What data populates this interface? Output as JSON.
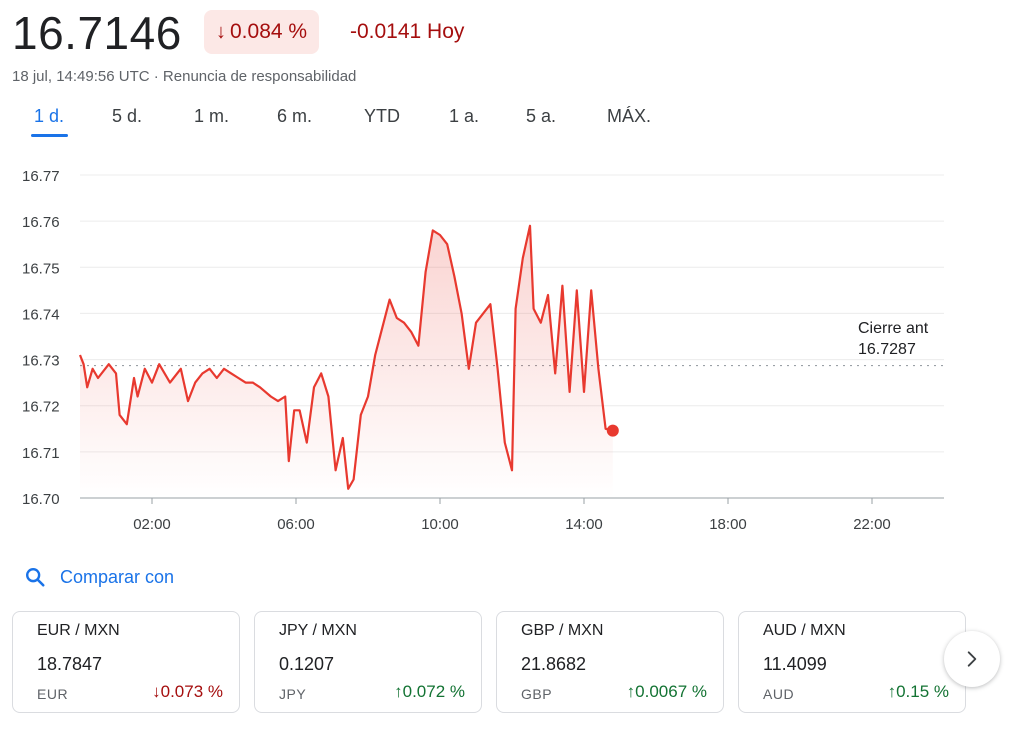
{
  "quote": {
    "price": "16.7146",
    "change_pct": "0.084 %",
    "change_abs": "-0.0141 Hoy",
    "timestamp": "18 jul, 14:49:56 UTC",
    "separator": " · ",
    "disclaimer": "Renuncia de responsabilidad"
  },
  "colors": {
    "down": "#a50e0e",
    "up": "#137333",
    "line": "#e8392f",
    "accent": "#1a73e8"
  },
  "tabs": [
    "1 d.",
    "5 d.",
    "1 m.",
    "6 m.",
    "YTD",
    "1 a.",
    "5 a.",
    "MÁX."
  ],
  "prev_close": {
    "label": "Cierre ant",
    "value": "16.7287"
  },
  "chart_data": {
    "type": "line",
    "y_ticks": [
      "16.77",
      "16.76",
      "16.75",
      "16.74",
      "16.73",
      "16.72",
      "16.71",
      "16.70"
    ],
    "x_ticks": [
      "02:00",
      "06:00",
      "10:00",
      "14:00",
      "18:00",
      "22:00"
    ],
    "ylim": [
      16.7,
      16.77
    ],
    "xlim_hours": [
      0,
      24
    ],
    "reference_line": 16.7287,
    "series": [
      {
        "x": [
          0.0,
          0.1,
          0.2,
          0.35,
          0.5,
          0.8,
          1.0,
          1.1,
          1.3,
          1.5,
          1.6,
          1.8,
          2.0,
          2.2,
          2.5,
          2.8,
          3.0,
          3.2,
          3.4,
          3.6,
          3.8,
          4.0,
          4.2,
          4.4,
          4.6,
          4.8,
          5.0,
          5.3,
          5.5,
          5.7,
          5.8,
          5.95,
          6.1,
          6.3,
          6.5,
          6.7,
          6.9,
          7.1,
          7.3,
          7.45,
          7.6,
          7.8,
          8.0,
          8.2,
          8.4,
          8.6,
          8.8,
          9.0,
          9.2,
          9.4,
          9.6,
          9.8,
          10.0,
          10.2,
          10.4,
          10.6,
          10.8,
          11.0,
          11.2,
          11.4,
          11.6,
          11.8,
          12.0,
          12.1,
          12.3,
          12.5,
          12.6,
          12.8,
          13.0,
          13.2,
          13.4,
          13.6,
          13.8,
          14.0,
          14.2,
          14.4,
          14.6,
          14.8
        ],
        "y": [
          16.731,
          16.729,
          16.724,
          16.728,
          16.726,
          16.729,
          16.727,
          16.718,
          16.716,
          16.726,
          16.722,
          16.728,
          16.725,
          16.729,
          16.725,
          16.728,
          16.721,
          16.725,
          16.727,
          16.728,
          16.726,
          16.728,
          16.727,
          16.726,
          16.725,
          16.725,
          16.724,
          16.722,
          16.721,
          16.722,
          16.708,
          16.719,
          16.719,
          16.712,
          16.724,
          16.727,
          16.722,
          16.706,
          16.713,
          16.702,
          16.704,
          16.718,
          16.722,
          16.731,
          16.737,
          16.743,
          16.739,
          16.738,
          16.736,
          16.733,
          16.749,
          16.758,
          16.757,
          16.755,
          16.748,
          16.74,
          16.728,
          16.738,
          16.74,
          16.742,
          16.728,
          16.712,
          16.706,
          16.741,
          16.752,
          16.759,
          16.741,
          16.738,
          16.744,
          16.727,
          16.746,
          16.723,
          16.745,
          16.723,
          16.745,
          16.728,
          16.715,
          16.7146
        ]
      }
    ]
  },
  "compare": {
    "label": "Comparar con"
  },
  "cards": [
    {
      "pair": "EUR / MXN",
      "rate": "18.7847",
      "currency": "EUR",
      "change": "0.073 %",
      "dir": "down"
    },
    {
      "pair": "JPY / MXN",
      "rate": "0.1207",
      "currency": "JPY",
      "change": "0.072 %",
      "dir": "up"
    },
    {
      "pair": "GBP / MXN",
      "rate": "21.8682",
      "currency": "GBP",
      "change": "0.0067 %",
      "dir": "up"
    },
    {
      "pair": "AUD / MXN",
      "rate": "11.4099",
      "currency": "AUD",
      "change": "0.15 %",
      "dir": "up"
    }
  ]
}
